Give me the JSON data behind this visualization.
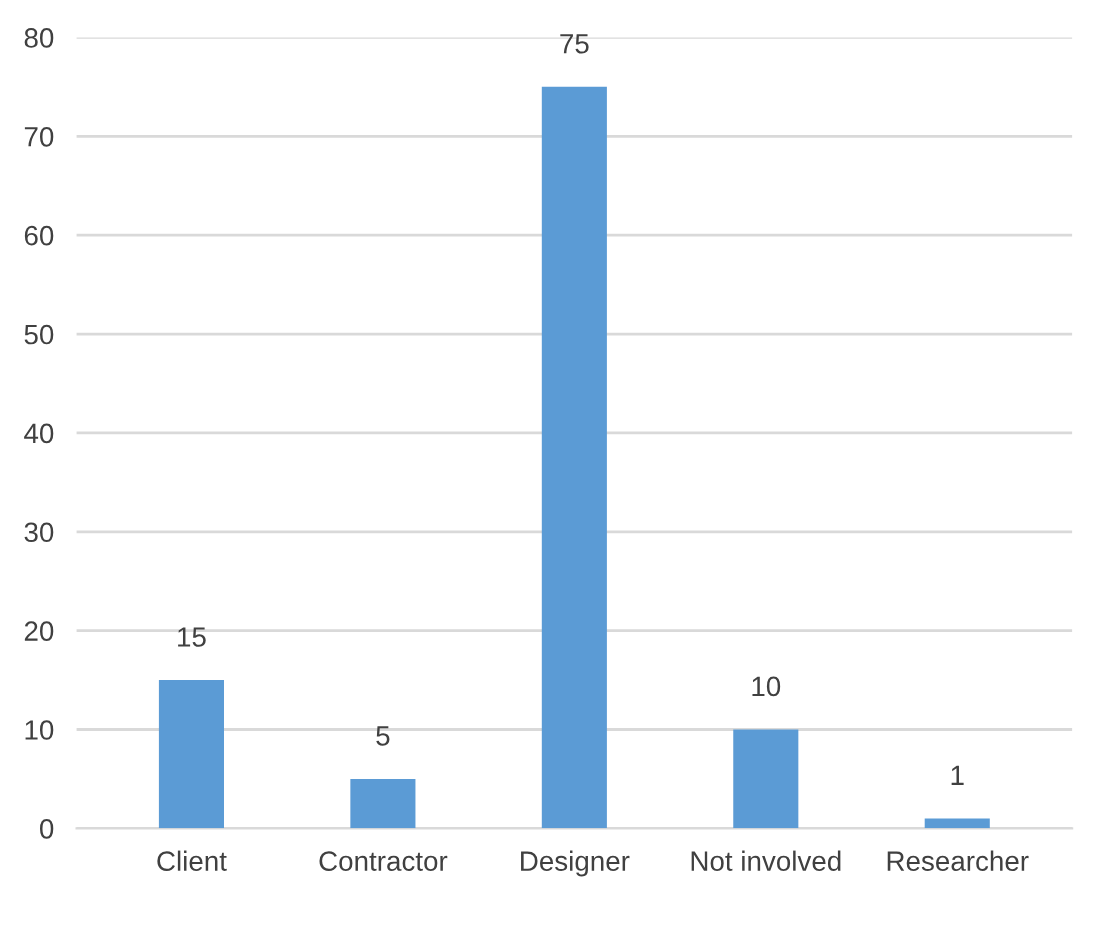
{
  "chart_data": {
    "type": "bar",
    "categories": [
      "Client",
      "Contractor",
      "Designer",
      "Not involved",
      "Researcher"
    ],
    "values": [
      15,
      5,
      75,
      10,
      1
    ],
    "color": "#5b9bd5",
    "ylim": [
      0,
      80
    ],
    "yticks": [
      0,
      10,
      20,
      30,
      40,
      50,
      60,
      70,
      80
    ],
    "grid": "y",
    "data_labels": true
  }
}
